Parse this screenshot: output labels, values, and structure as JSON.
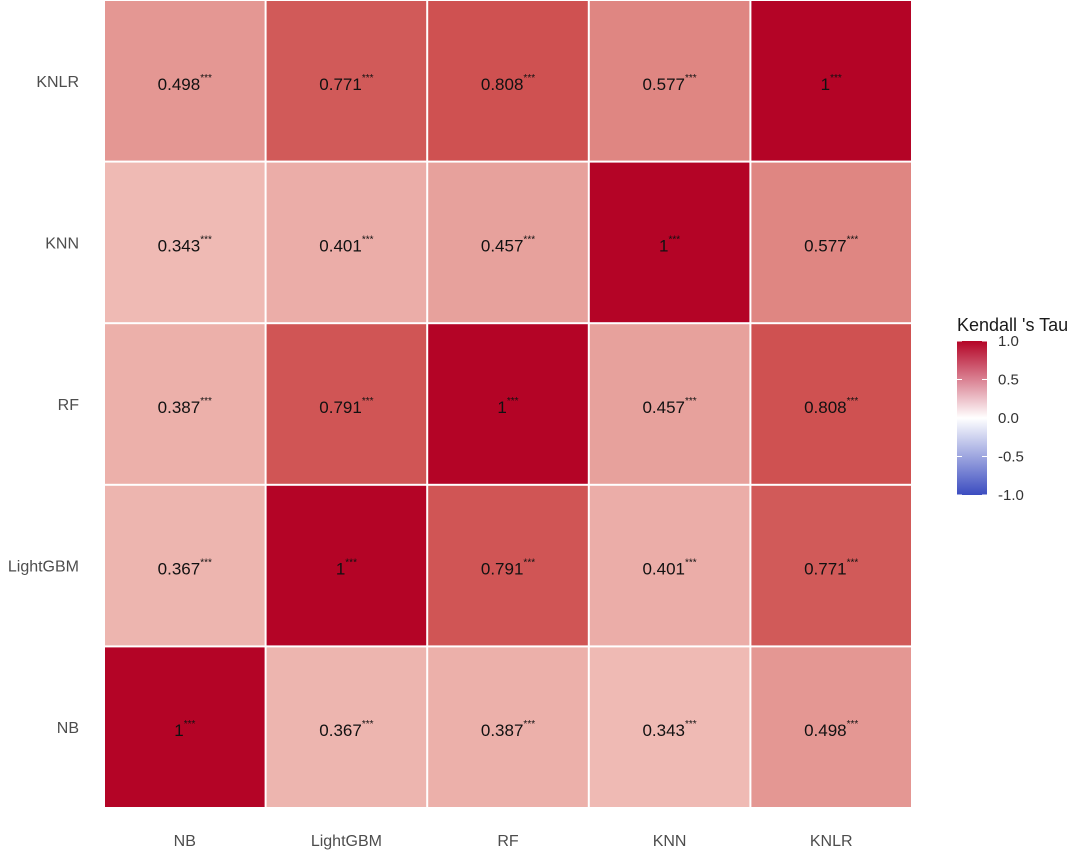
{
  "chart_data": {
    "type": "heatmap",
    "title": "",
    "xlabel": "",
    "ylabel": "",
    "x_categories": [
      "NB",
      "LightGBM",
      "RF",
      "KNN",
      "KNLR"
    ],
    "y_categories": [
      "NB",
      "LightGBM",
      "RF",
      "KNN",
      "KNLR"
    ],
    "matrix": [
      [
        1,
        0.367,
        0.387,
        0.343,
        0.498
      ],
      [
        0.367,
        1,
        0.791,
        0.401,
        0.771
      ],
      [
        0.387,
        0.791,
        1,
        0.457,
        0.808
      ],
      [
        0.343,
        0.401,
        0.457,
        1,
        0.577
      ],
      [
        0.498,
        0.771,
        0.808,
        0.577,
        1
      ]
    ],
    "labels": [
      [
        "1",
        "0.367",
        "0.387",
        "0.343",
        "0.498"
      ],
      [
        "0.367",
        "1",
        "0.791",
        "0.401",
        "0.771"
      ],
      [
        "0.387",
        "0.791",
        "1",
        "0.457",
        "0.808"
      ],
      [
        "0.343",
        "0.401",
        "0.457",
        "1",
        "0.577"
      ],
      [
        "0.498",
        "0.771",
        "0.808",
        "0.577",
        "1"
      ]
    ],
    "significance": "***",
    "grid": false,
    "legend": {
      "title": "Kendall 's Tau",
      "placement": "right",
      "range": [
        -1.0,
        1.0
      ],
      "ticks": [
        "1.0",
        "0.5",
        "0.0",
        "-0.5",
        "-1.0"
      ],
      "tick_values": [
        1.0,
        0.5,
        0.0,
        -0.5,
        -1.0
      ],
      "colors": {
        "low": "#3b4cc0",
        "mid": "#ffffff",
        "high": "#b40426"
      }
    }
  }
}
